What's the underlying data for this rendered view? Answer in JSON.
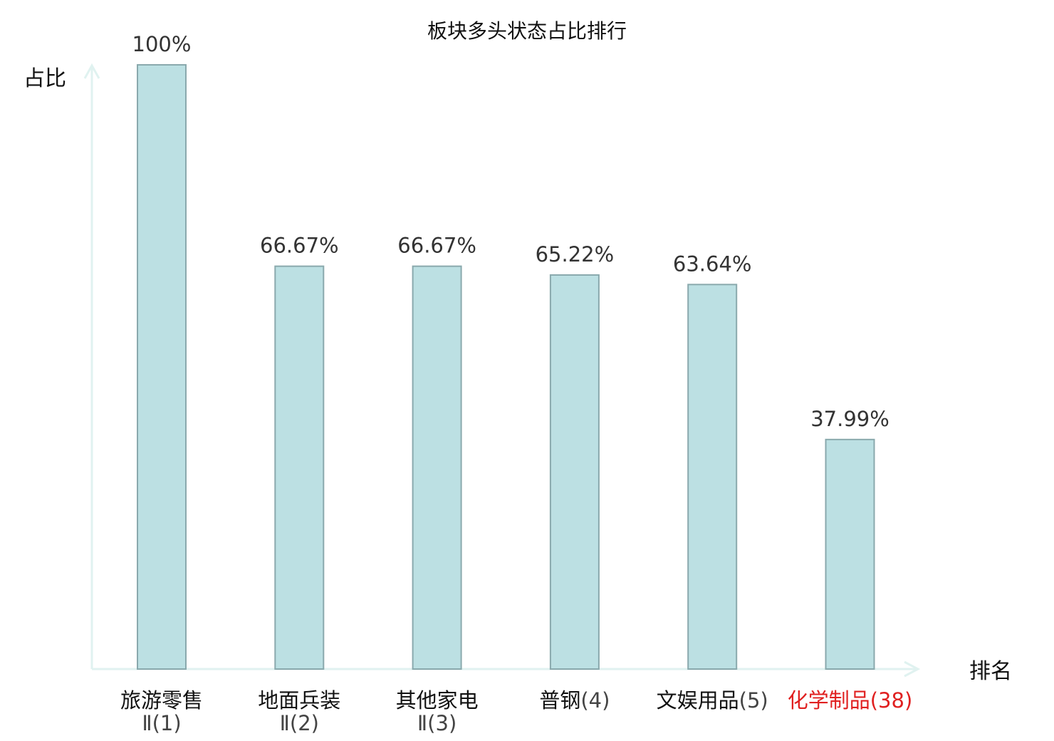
{
  "chart_data": {
    "type": "bar",
    "title": "板块多头状态占比排行",
    "ylabel": "占比",
    "xlabel": "排名",
    "ylim": [
      0,
      100
    ],
    "grid": false,
    "categories": [
      {
        "name": "旅游零售",
        "rank": "Ⅱ(1)",
        "highlight": false
      },
      {
        "name": "地面兵装",
        "rank": "Ⅱ(2)",
        "highlight": false
      },
      {
        "name": "其他家电",
        "rank": "Ⅱ(3)",
        "highlight": false
      },
      {
        "name": "普钢",
        "rank": "(4)",
        "highlight": false
      },
      {
        "name": "文娱用品",
        "rank": "(5)",
        "highlight": false
      },
      {
        "name": "化学制品",
        "rank": "(38)",
        "highlight": true
      }
    ],
    "values": [
      100,
      66.67,
      66.67,
      65.22,
      63.64,
      37.99
    ],
    "value_labels": [
      "100%",
      "66.67%",
      "66.67%",
      "65.22%",
      "63.64%",
      "37.99%"
    ],
    "colors": {
      "bar_fill": "#bce0e3",
      "bar_stroke": "#8aa9ad",
      "axis": "#e0f2f0",
      "highlight": "#e02020",
      "text": "#111111",
      "rank_text": "#444444"
    }
  }
}
